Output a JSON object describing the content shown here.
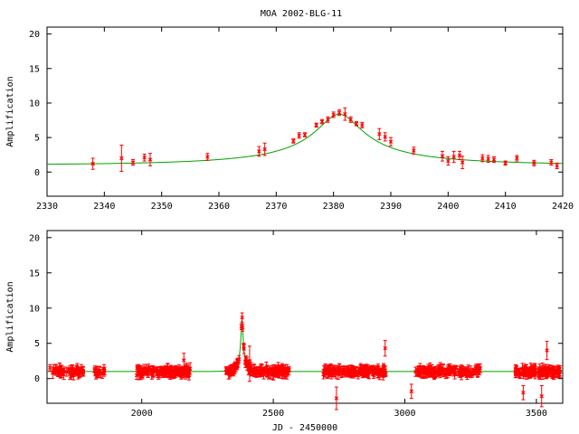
{
  "chart_data": {
    "title": "MOA 2002-BLG-11",
    "colors": {
      "model": "#00a000",
      "data": "#ff0000"
    },
    "panels": [
      {
        "type": "scatter",
        "ylabel": "Amplification",
        "xlabel": "",
        "xlim": [
          2330,
          2420
        ],
        "ylim": [
          -3.5,
          21
        ],
        "xticks": [
          2330,
          2340,
          2350,
          2360,
          2370,
          2380,
          2390,
          2400,
          2410,
          2420
        ],
        "yticks": [
          0,
          5,
          10,
          15,
          20
        ],
        "model": {
          "t0": 2381,
          "tE": 34,
          "u0": 0.12
        },
        "points": [
          [
            2338,
            1.2,
            0.8
          ],
          [
            2343,
            2.0,
            1.9
          ],
          [
            2345,
            1.4,
            0.4
          ],
          [
            2347,
            2.1,
            0.5
          ],
          [
            2348,
            1.8,
            0.9
          ],
          [
            2358,
            2.2,
            0.5
          ],
          [
            2367,
            3.0,
            0.7
          ],
          [
            2368,
            3.3,
            0.9
          ],
          [
            2373,
            4.5,
            0.3
          ],
          [
            2374,
            5.3,
            0.4
          ],
          [
            2375,
            5.4,
            0.3
          ],
          [
            2377,
            6.8,
            0.3
          ],
          [
            2378,
            7.3,
            0.3
          ],
          [
            2379,
            7.6,
            0.4
          ],
          [
            2380,
            8.3,
            0.4
          ],
          [
            2381,
            8.6,
            0.4
          ],
          [
            2382,
            8.4,
            0.9
          ],
          [
            2383,
            7.6,
            0.4
          ],
          [
            2384,
            7.0,
            0.3
          ],
          [
            2385,
            6.8,
            0.4
          ],
          [
            2388,
            5.5,
            0.8
          ],
          [
            2389,
            5.1,
            0.6
          ],
          [
            2390,
            4.4,
            0.6
          ],
          [
            2394,
            3.1,
            0.5
          ],
          [
            2399,
            2.3,
            0.7
          ],
          [
            2400,
            1.6,
            0.6
          ],
          [
            2401,
            2.2,
            0.8
          ],
          [
            2402,
            2.4,
            0.6
          ],
          [
            2402.5,
            1.4,
            0.9
          ],
          [
            2406,
            2.0,
            0.5
          ],
          [
            2407,
            1.9,
            0.5
          ],
          [
            2408,
            1.8,
            0.4
          ],
          [
            2410,
            1.3,
            0.3
          ],
          [
            2412,
            2.0,
            0.4
          ],
          [
            2415,
            1.3,
            0.4
          ],
          [
            2418,
            1.4,
            0.4
          ],
          [
            2419,
            0.9,
            0.4
          ]
        ]
      },
      {
        "type": "scatter",
        "ylabel": "Amplification",
        "xlabel": "JD - 2450000",
        "xlim": [
          1640,
          3600
        ],
        "ylim": [
          -3.5,
          21
        ],
        "xticks": [
          2000,
          2500,
          3000,
          3500
        ],
        "yticks": [
          0,
          5,
          10,
          15,
          20
        ],
        "model": {
          "t0": 2381,
          "tE": 34,
          "u0": 0.12
        },
        "seasons": [
          [
            1650,
            1780,
            60
          ],
          [
            1820,
            1860,
            18
          ],
          [
            1980,
            2190,
            130
          ],
          [
            2320,
            2560,
            150
          ],
          [
            2690,
            2930,
            150
          ],
          [
            3040,
            3290,
            140
          ],
          [
            3420,
            3590,
            130
          ]
        ],
        "outliers": [
          [
            2410,
            2.1,
            2.5
          ],
          [
            2740,
            -2.8,
            1.6
          ],
          [
            2925,
            4.3,
            1.1
          ],
          [
            3025,
            -1.8,
            1.0
          ],
          [
            3540,
            4.0,
            1.3
          ],
          [
            3450,
            -2.0,
            1.0
          ],
          [
            3520,
            -2.5,
            1.5
          ],
          [
            2160,
            2.6,
            1.0
          ]
        ]
      }
    ]
  }
}
